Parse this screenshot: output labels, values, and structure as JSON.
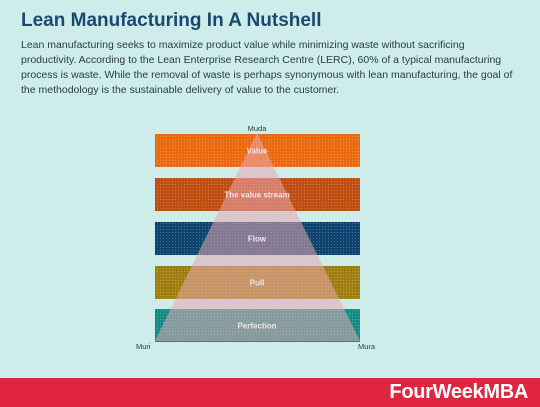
{
  "header": {
    "title": "Lean Manufacturing In A Nutshell",
    "description": "Lean manufacturing seeks to maximize product value while minimizing waste without sacrificing productivity. According to the Lean Enterprise Research Centre (LERC), 60% of a typical manufacturing process is waste. While the removal of waste is perhaps synonymous with lean manufacturing, the goal of the methodology is the sustainable delivery of value to the customer."
  },
  "diagram": {
    "apex_label": "Muda",
    "left_corner_label": "Muri",
    "right_corner_label": "Mura",
    "layers": [
      {
        "label": "Value",
        "color": "#ea6a0f"
      },
      {
        "label": "The value stream",
        "color": "#bf4e12"
      },
      {
        "label": "Flow",
        "color": "#0e4470"
      },
      {
        "label": "Pull",
        "color": "#a07e10"
      },
      {
        "label": "Perfection",
        "color": "#118d88"
      }
    ],
    "triangle_color": "#e8a8b0"
  },
  "footer": {
    "brand": "FourWeekMBA",
    "color": "#e0263f"
  }
}
